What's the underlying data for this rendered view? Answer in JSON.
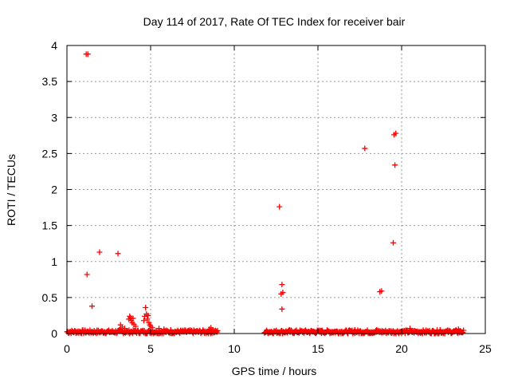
{
  "chart_data": {
    "type": "scatter",
    "title": "Day 114 of 2017, Rate Of TEC Index for receiver bair",
    "xlabel": "GPS time / hours",
    "ylabel": "ROTI / TECUs",
    "xlim": [
      0,
      25
    ],
    "ylim": [
      0,
      4
    ],
    "xticks": [
      0,
      5,
      10,
      15,
      20,
      25
    ],
    "yticks": [
      0,
      0.5,
      1,
      1.5,
      2,
      2.5,
      3,
      3.5,
      4
    ],
    "ytick_labels": [
      "0",
      "0.5",
      "1",
      "1.5",
      "2",
      "2.5",
      "3",
      "3.5",
      "4"
    ],
    "grid": true,
    "marker": "+",
    "color": "#ff0000",
    "baseline_segments": [
      {
        "x_start": 0.0,
        "x_end": 9.0,
        "y_low": 0.0,
        "y_high": 0.06
      },
      {
        "x_start": 11.8,
        "x_end": 23.7,
        "y_low": 0.0,
        "y_high": 0.06
      }
    ],
    "points": [
      [
        1.15,
        3.88
      ],
      [
        1.25,
        3.88
      ],
      [
        1.2,
        0.82
      ],
      [
        1.5,
        0.38
      ],
      [
        1.95,
        1.13
      ],
      [
        3.05,
        1.11
      ],
      [
        12.7,
        1.76
      ],
      [
        12.85,
        0.68
      ],
      [
        12.8,
        0.55
      ],
      [
        12.9,
        0.57
      ],
      [
        12.85,
        0.34
      ],
      [
        17.8,
        2.57
      ],
      [
        19.55,
        2.76
      ],
      [
        19.65,
        2.78
      ],
      [
        19.6,
        2.34
      ],
      [
        19.5,
        1.26
      ],
      [
        18.7,
        0.58
      ],
      [
        18.8,
        0.59
      ],
      [
        3.2,
        0.12
      ],
      [
        3.3,
        0.09
      ],
      [
        3.45,
        0.07
      ],
      [
        3.7,
        0.2
      ],
      [
        3.75,
        0.24
      ],
      [
        3.8,
        0.22
      ],
      [
        3.85,
        0.18
      ],
      [
        3.9,
        0.15
      ],
      [
        3.95,
        0.21
      ],
      [
        4.0,
        0.13
      ],
      [
        4.1,
        0.1
      ],
      [
        4.6,
        0.18
      ],
      [
        4.65,
        0.24
      ],
      [
        4.7,
        0.36
      ],
      [
        4.75,
        0.27
      ],
      [
        4.8,
        0.2
      ],
      [
        4.85,
        0.25
      ],
      [
        4.9,
        0.15
      ],
      [
        4.95,
        0.12
      ],
      [
        5.0,
        0.1
      ],
      [
        5.1,
        0.08
      ],
      [
        5.5,
        0.07
      ],
      [
        5.8,
        0.06
      ],
      [
        6.2,
        0.05
      ],
      [
        8.5,
        0.06
      ],
      [
        8.6,
        0.08
      ],
      [
        8.7,
        0.05
      ],
      [
        13.3,
        0.05
      ],
      [
        15.2,
        0.04
      ],
      [
        17.2,
        0.05
      ],
      [
        18.5,
        0.05
      ],
      [
        20.5,
        0.07
      ],
      [
        22.3,
        0.05
      ],
      [
        23.4,
        0.06
      ]
    ]
  }
}
